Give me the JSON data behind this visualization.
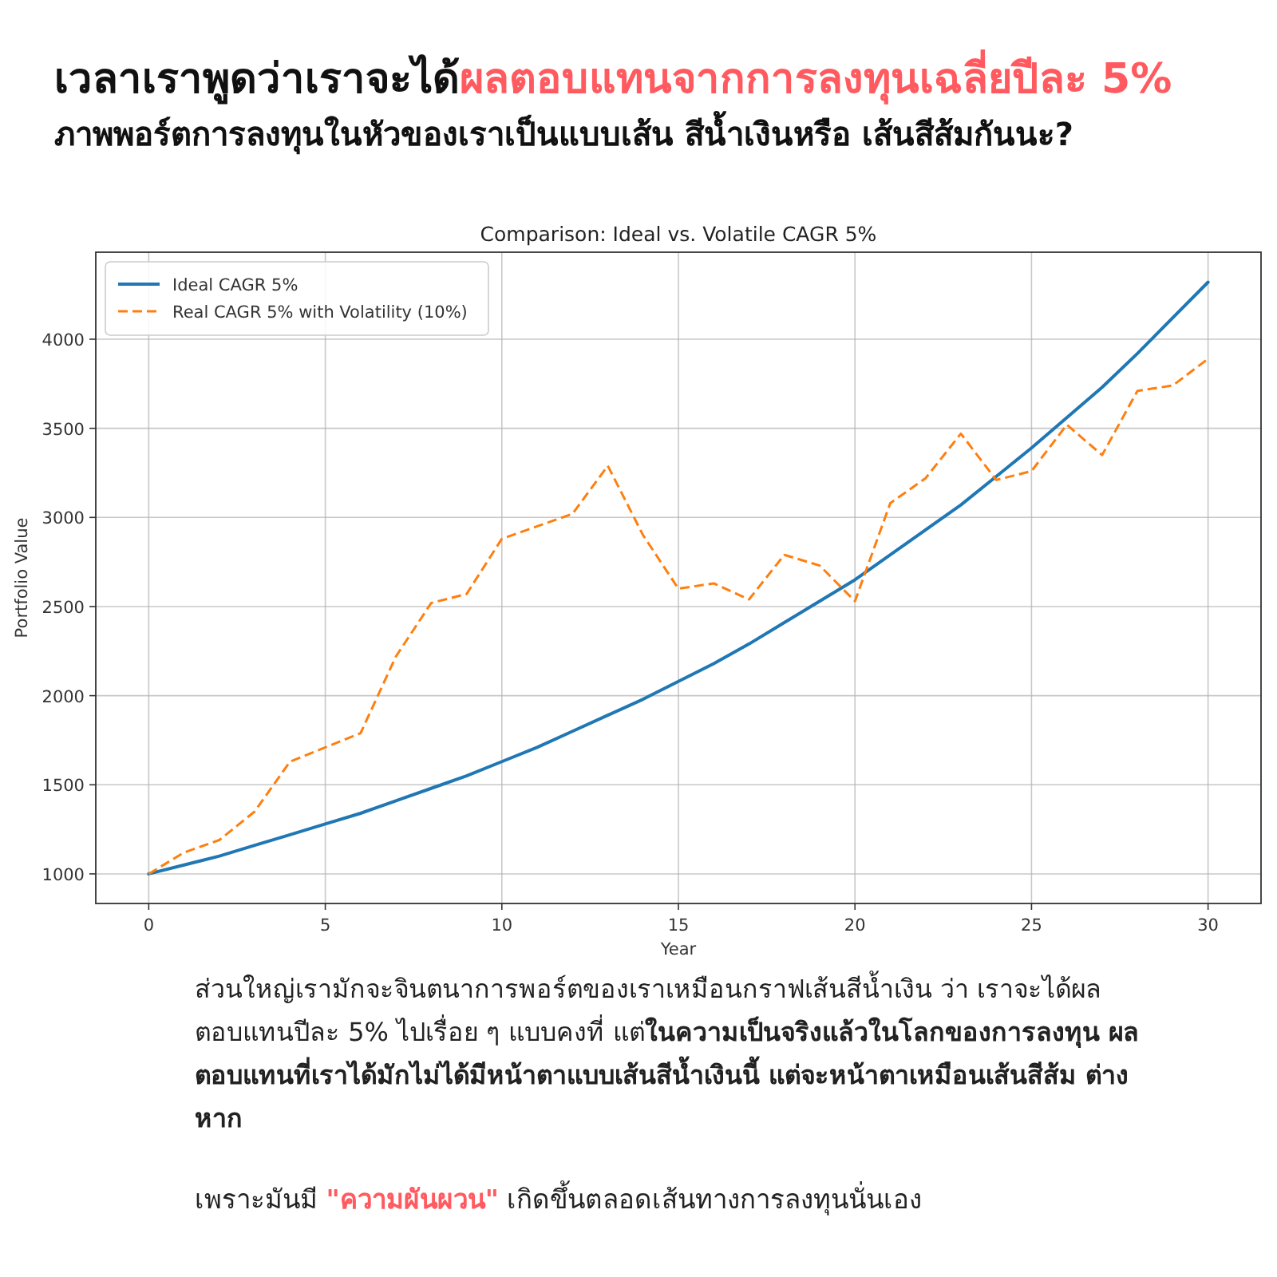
{
  "chart_data": {
    "type": "line",
    "title": "Comparison: Ideal vs. Volatile CAGR 5%",
    "xlabel": "Year",
    "ylabel": "Portfolio Value",
    "x": [
      0,
      1,
      2,
      3,
      4,
      5,
      6,
      7,
      8,
      9,
      10,
      11,
      12,
      13,
      14,
      15,
      16,
      17,
      18,
      19,
      20,
      21,
      22,
      23,
      24,
      25,
      26,
      27,
      28,
      29,
      30
    ],
    "series": [
      {
        "name": "Ideal CAGR 5%",
        "color": "#1f77b4",
        "line_style": "solid",
        "values": [
          1000,
          1050,
          1100,
          1160,
          1220,
          1280,
          1340,
          1410,
          1480,
          1550,
          1630,
          1710,
          1800,
          1890,
          1980,
          2080,
          2180,
          2290,
          2410,
          2530,
          2650,
          2790,
          2930,
          3070,
          3230,
          3390,
          3560,
          3730,
          3920,
          4120,
          4320
        ]
      },
      {
        "name": "Real CAGR 5% with Volatility (10%)",
        "color": "#ff7f0e",
        "line_style": "dashed",
        "values": [
          1000,
          1120,
          1190,
          1350,
          1630,
          1710,
          1790,
          2220,
          2520,
          2570,
          2880,
          2950,
          3020,
          3290,
          2900,
          2600,
          2630,
          2540,
          2790,
          2730,
          2530,
          3080,
          3220,
          3470,
          3210,
          3260,
          3520,
          3350,
          3710,
          3740,
          3890
        ]
      }
    ],
    "xlim": [
      -1.5,
      31.5
    ],
    "ylim": [
      834,
      4488
    ],
    "xticks": [
      0,
      5,
      10,
      15,
      20,
      25,
      30
    ],
    "yticks": [
      1000,
      1500,
      2000,
      2500,
      3000,
      3500,
      4000
    ],
    "grid": true,
    "legend": "top left",
    "marker": "none",
    "annotations": [
      "เวลาเราพูดว่าเราจะได้",
      "ผลตอบแทนจากการลงทุนเฉลี่ยปีละ 5%",
      "ภาพพอร์ตการลงทุนในหัวของเราเป็นแบบเส้น สีน้ำเงินหรือ เส้นสีส้มกันนะ?",
      "ส่วนใหญ่เรามักจะจินตนาการพอร์ตของเราเหมือนกราฟเส้นสีน้ำเงิน ว่า เราจะได้ผลตอบแทนปีละ 5% ไปเรื่อย ๆ แบบคงที่ แต่**ในความเป็นจริงแล้วในโลกของการลงทุน ผลตอบแทนที่เราได้มักไม่ได้มีหน้าตาแบบเส้นสีน้ำเงินนี้ แต่จะหน้าตาเหมือนเส้นสีส้ม ต่างหาก**",
      "เพราะมันมี ",
      "\"ความผันผวน\"",
      " เกิดขึ้นตลอดเส้นทางการลงทุนนั่นเอง"
    ]
  }
}
